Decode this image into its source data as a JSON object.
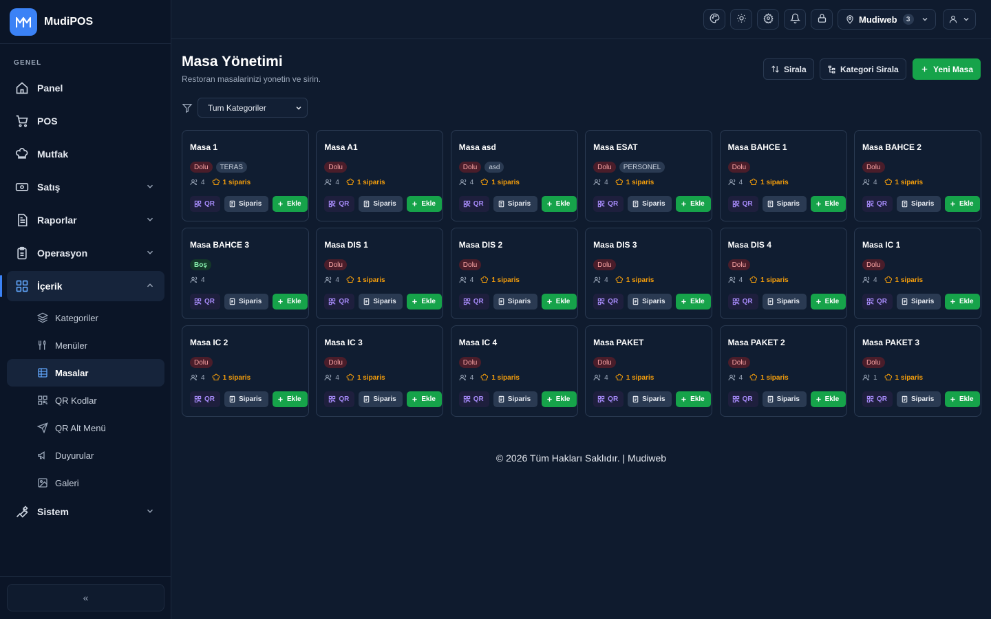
{
  "brand": {
    "logo_text": "M",
    "name": "MudiPOS"
  },
  "sidebar": {
    "section_label": "GENEL",
    "items": [
      {
        "label": "Panel",
        "icon": "home-icon"
      },
      {
        "label": "POS",
        "icon": "cart-icon"
      },
      {
        "label": "Mutfak",
        "icon": "chef-icon"
      },
      {
        "label": "Satış",
        "icon": "cash-icon"
      },
      {
        "label": "Raporlar",
        "icon": "report-icon"
      },
      {
        "label": "Operasyon",
        "icon": "clipboard-icon"
      },
      {
        "label": "İçerik",
        "icon": "grid-icon"
      },
      {
        "label": "Sistem",
        "icon": "wrench-icon"
      }
    ],
    "sub_items": [
      {
        "label": "Kategoriler",
        "icon": "layers-icon"
      },
      {
        "label": "Menüler",
        "icon": "utensils-icon"
      },
      {
        "label": "Masalar",
        "icon": "table-icon"
      },
      {
        "label": "QR Kodlar",
        "icon": "qr-icon"
      },
      {
        "label": "QR Alt Menü",
        "icon": "send-icon"
      },
      {
        "label": "Duyurular",
        "icon": "megaphone-icon"
      },
      {
        "label": "Galeri",
        "icon": "image-icon"
      }
    ],
    "collapse_label": "«"
  },
  "header": {
    "location": "Mudiweb",
    "location_count": "3"
  },
  "page": {
    "title": "Masa Yönetimi",
    "subtitle": "Restoran masalarinizi yonetin ve sirin.",
    "sort_label": "Sirala",
    "category_sort_label": "Kategori Sirala",
    "new_label": "Yeni Masa",
    "filter_value": "Tum Kategoriler"
  },
  "card_labels": {
    "qr": "QR",
    "siparis": "Siparis",
    "ekle": "Ekle"
  },
  "tables": [
    {
      "name": "Masa 1",
      "status": "Dolu",
      "category": "TERAS",
      "capacity": "4",
      "orders": "1 siparis"
    },
    {
      "name": "Masa A1",
      "status": "Dolu",
      "category": "",
      "capacity": "4",
      "orders": "1 siparis"
    },
    {
      "name": "Masa asd",
      "status": "Dolu",
      "category": "asd",
      "capacity": "4",
      "orders": "1 siparis"
    },
    {
      "name": "Masa ESAT",
      "status": "Dolu",
      "category": "PERSONEL",
      "capacity": "4",
      "orders": "1 siparis"
    },
    {
      "name": "Masa BAHCE 1",
      "status": "Dolu",
      "category": "",
      "capacity": "4",
      "orders": "1 siparis"
    },
    {
      "name": "Masa BAHCE 2",
      "status": "Dolu",
      "category": "",
      "capacity": "4",
      "orders": "1 siparis"
    },
    {
      "name": "Masa BAHCE 3",
      "status": "Boş",
      "category": "",
      "capacity": "4",
      "orders": ""
    },
    {
      "name": "Masa DIS 1",
      "status": "Dolu",
      "category": "",
      "capacity": "4",
      "orders": "1 siparis"
    },
    {
      "name": "Masa DIS 2",
      "status": "Dolu",
      "category": "",
      "capacity": "4",
      "orders": "1 siparis"
    },
    {
      "name": "Masa DIS 3",
      "status": "Dolu",
      "category": "",
      "capacity": "4",
      "orders": "1 siparis"
    },
    {
      "name": "Masa DIS 4",
      "status": "Dolu",
      "category": "",
      "capacity": "4",
      "orders": "1 siparis"
    },
    {
      "name": "Masa IC 1",
      "status": "Dolu",
      "category": "",
      "capacity": "4",
      "orders": "1 siparis"
    },
    {
      "name": "Masa IC 2",
      "status": "Dolu",
      "category": "",
      "capacity": "4",
      "orders": "1 siparis"
    },
    {
      "name": "Masa IC 3",
      "status": "Dolu",
      "category": "",
      "capacity": "4",
      "orders": "1 siparis"
    },
    {
      "name": "Masa IC 4",
      "status": "Dolu",
      "category": "",
      "capacity": "4",
      "orders": "1 siparis"
    },
    {
      "name": "Masa PAKET",
      "status": "Dolu",
      "category": "",
      "capacity": "4",
      "orders": "1 siparis"
    },
    {
      "name": "Masa PAKET 2",
      "status": "Dolu",
      "category": "",
      "capacity": "4",
      "orders": "1 siparis"
    },
    {
      "name": "Masa PAKET 3",
      "status": "Dolu",
      "category": "",
      "capacity": "1",
      "orders": "1 siparis"
    }
  ],
  "footer": {
    "text": "© 2026 Tüm Hakları Saklıdır. | Mudiweb"
  }
}
